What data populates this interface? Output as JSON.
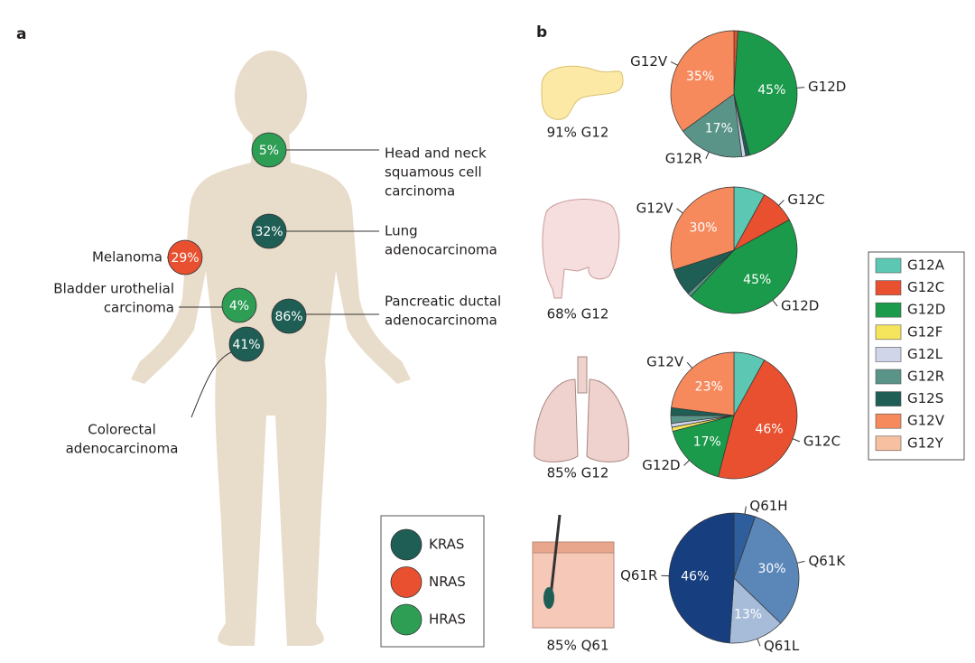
{
  "panel_a": {
    "label": "a",
    "sites": [
      {
        "lines": [
          "Head and neck",
          "squamous cell",
          "carcinoma"
        ],
        "value_label": "5%",
        "gene": "HRAS"
      },
      {
        "lines": [
          "Lung",
          "adenocarcinoma"
        ],
        "value_label": "32%",
        "gene": "KRAS"
      },
      {
        "lines": [
          "Melanoma"
        ],
        "value_label": "29%",
        "gene": "NRAS"
      },
      {
        "lines": [
          "Bladder urothelial",
          "carcinoma"
        ],
        "value_label": "4%",
        "gene": "HRAS"
      },
      {
        "lines": [
          "Pancreatic ductal",
          "adenocarcinoma"
        ],
        "value_label": "86%",
        "gene": "KRAS"
      },
      {
        "lines": [
          "Colorectal",
          "adenocarcinoma"
        ],
        "value_label": "41%",
        "gene": "KRAS"
      }
    ],
    "legend": [
      {
        "name": "KRAS",
        "color": "#1f5e55"
      },
      {
        "name": "NRAS",
        "color": "#e8502f"
      },
      {
        "name": "HRAS",
        "color": "#2e9e55"
      }
    ]
  },
  "panel_b": {
    "label": "b",
    "legend": [
      {
        "name": "G12A",
        "color": "#5cc7b2"
      },
      {
        "name": "G12C",
        "color": "#e8502f"
      },
      {
        "name": "G12D",
        "color": "#1a9a4a"
      },
      {
        "name": "G12F",
        "color": "#f5e55c"
      },
      {
        "name": "G12L",
        "color": "#d0d5ea"
      },
      {
        "name": "G12R",
        "color": "#5a9488"
      },
      {
        "name": "G12S",
        "color": "#1f5e55"
      },
      {
        "name": "G12V",
        "color": "#f78a5d"
      },
      {
        "name": "G12Y",
        "color": "#f7c0a0"
      }
    ]
  },
  "chart_data": [
    {
      "type": "pie",
      "caption": "91% G12",
      "categories": [
        null,
        "G12D",
        null,
        null,
        "G12R",
        "G12V"
      ],
      "values": [
        1,
        45,
        1,
        1,
        17,
        35
      ],
      "value_labels": [
        null,
        "45%",
        null,
        null,
        "17%",
        "35%"
      ],
      "colors": [
        "#e8502f",
        "#1a9a4a",
        "#1f5e55",
        "#d0d5ea",
        "#5a9488",
        "#f78a5d"
      ]
    },
    {
      "type": "pie",
      "caption": "68% G12",
      "categories": [
        null,
        "G12C",
        "G12D",
        null,
        null,
        "G12V"
      ],
      "values": [
        8,
        9,
        45,
        1,
        7,
        30
      ],
      "value_labels": [
        null,
        null,
        "45%",
        null,
        null,
        "30%"
      ],
      "colors": [
        "#5cc7b2",
        "#e8502f",
        "#1a9a4a",
        "#5a9488",
        "#1f5e55",
        "#f78a5d"
      ]
    },
    {
      "type": "pie",
      "caption": "85% G12",
      "categories": [
        null,
        "G12C",
        "G12D",
        null,
        null,
        null,
        null,
        "G12V"
      ],
      "values": [
        8,
        46,
        17,
        1,
        1,
        2,
        2,
        23
      ],
      "value_labels": [
        null,
        "46%",
        "17%",
        null,
        null,
        null,
        null,
        "23%"
      ],
      "colors": [
        "#5cc7b2",
        "#e8502f",
        "#1a9a4a",
        "#f5e55c",
        "#d0d5ea",
        "#5a9488",
        "#1f5e55",
        "#f78a5d"
      ]
    },
    {
      "type": "pie",
      "caption": "85% Q61",
      "categories": [
        "Q61H",
        "Q61K",
        "Q61L",
        "Q61R"
      ],
      "values": [
        5,
        30,
        13,
        46
      ],
      "value_labels": [
        null,
        "30%",
        "13%",
        "46%"
      ],
      "colors": [
        "#2f5e9c",
        "#5b86b8",
        "#a7bcd9",
        "#173f80"
      ]
    }
  ]
}
